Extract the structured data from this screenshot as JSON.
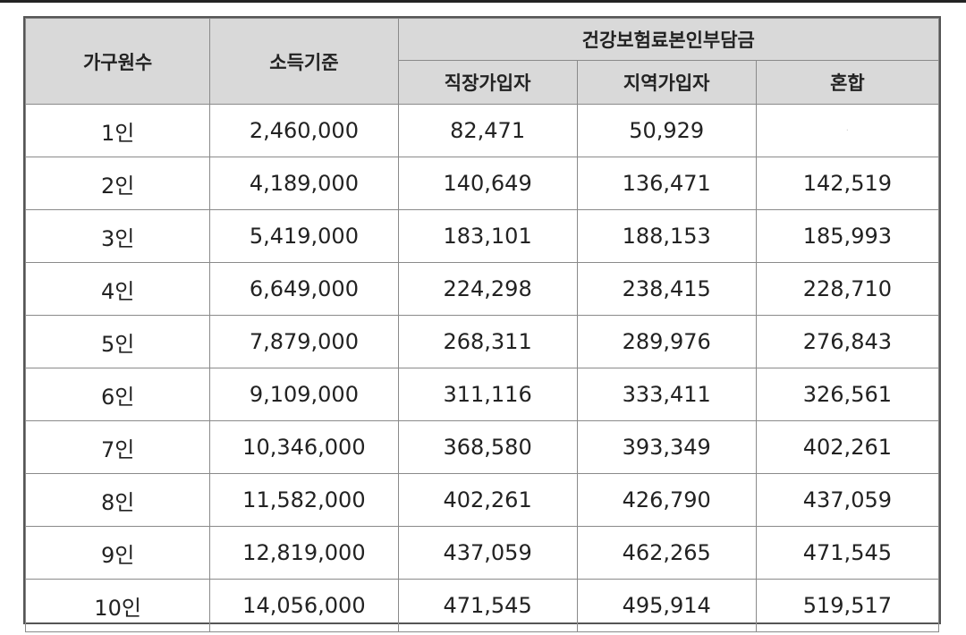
{
  "table": {
    "headers": {
      "household": "가구원수",
      "income": "소득기준",
      "premium_group": "건강보험료본인부담금",
      "employee": "직장가입자",
      "regional": "지역가입자",
      "mixed": "혼합"
    },
    "rows": [
      {
        "household": "1인",
        "income": "2,460,000",
        "employee": "82,471",
        "regional": "50,929",
        "mixed": "·"
      },
      {
        "household": "2인",
        "income": "4,189,000",
        "employee": "140,649",
        "regional": "136,471",
        "mixed": "142,519"
      },
      {
        "household": "3인",
        "income": "5,419,000",
        "employee": "183,101",
        "regional": "188,153",
        "mixed": "185,993"
      },
      {
        "household": "4인",
        "income": "6,649,000",
        "employee": "224,298",
        "regional": "238,415",
        "mixed": "228,710"
      },
      {
        "household": "5인",
        "income": "7,879,000",
        "employee": "268,311",
        "regional": "289,976",
        "mixed": "276,843"
      },
      {
        "household": "6인",
        "income": "9,109,000",
        "employee": "311,116",
        "regional": "333,411",
        "mixed": "326,561"
      },
      {
        "household": "7인",
        "income": "10,346,000",
        "employee": "368,580",
        "regional": "393,349",
        "mixed": "402,261"
      },
      {
        "household": "8인",
        "income": "11,582,000",
        "employee": "402,261",
        "regional": "426,790",
        "mixed": "437,059"
      },
      {
        "household": "9인",
        "income": "12,819,000",
        "employee": "437,059",
        "regional": "462,265",
        "mixed": "471,545"
      },
      {
        "household": "10인",
        "income": "14,056,000",
        "employee": "471,545",
        "regional": "495,914",
        "mixed": "519,517"
      }
    ]
  }
}
